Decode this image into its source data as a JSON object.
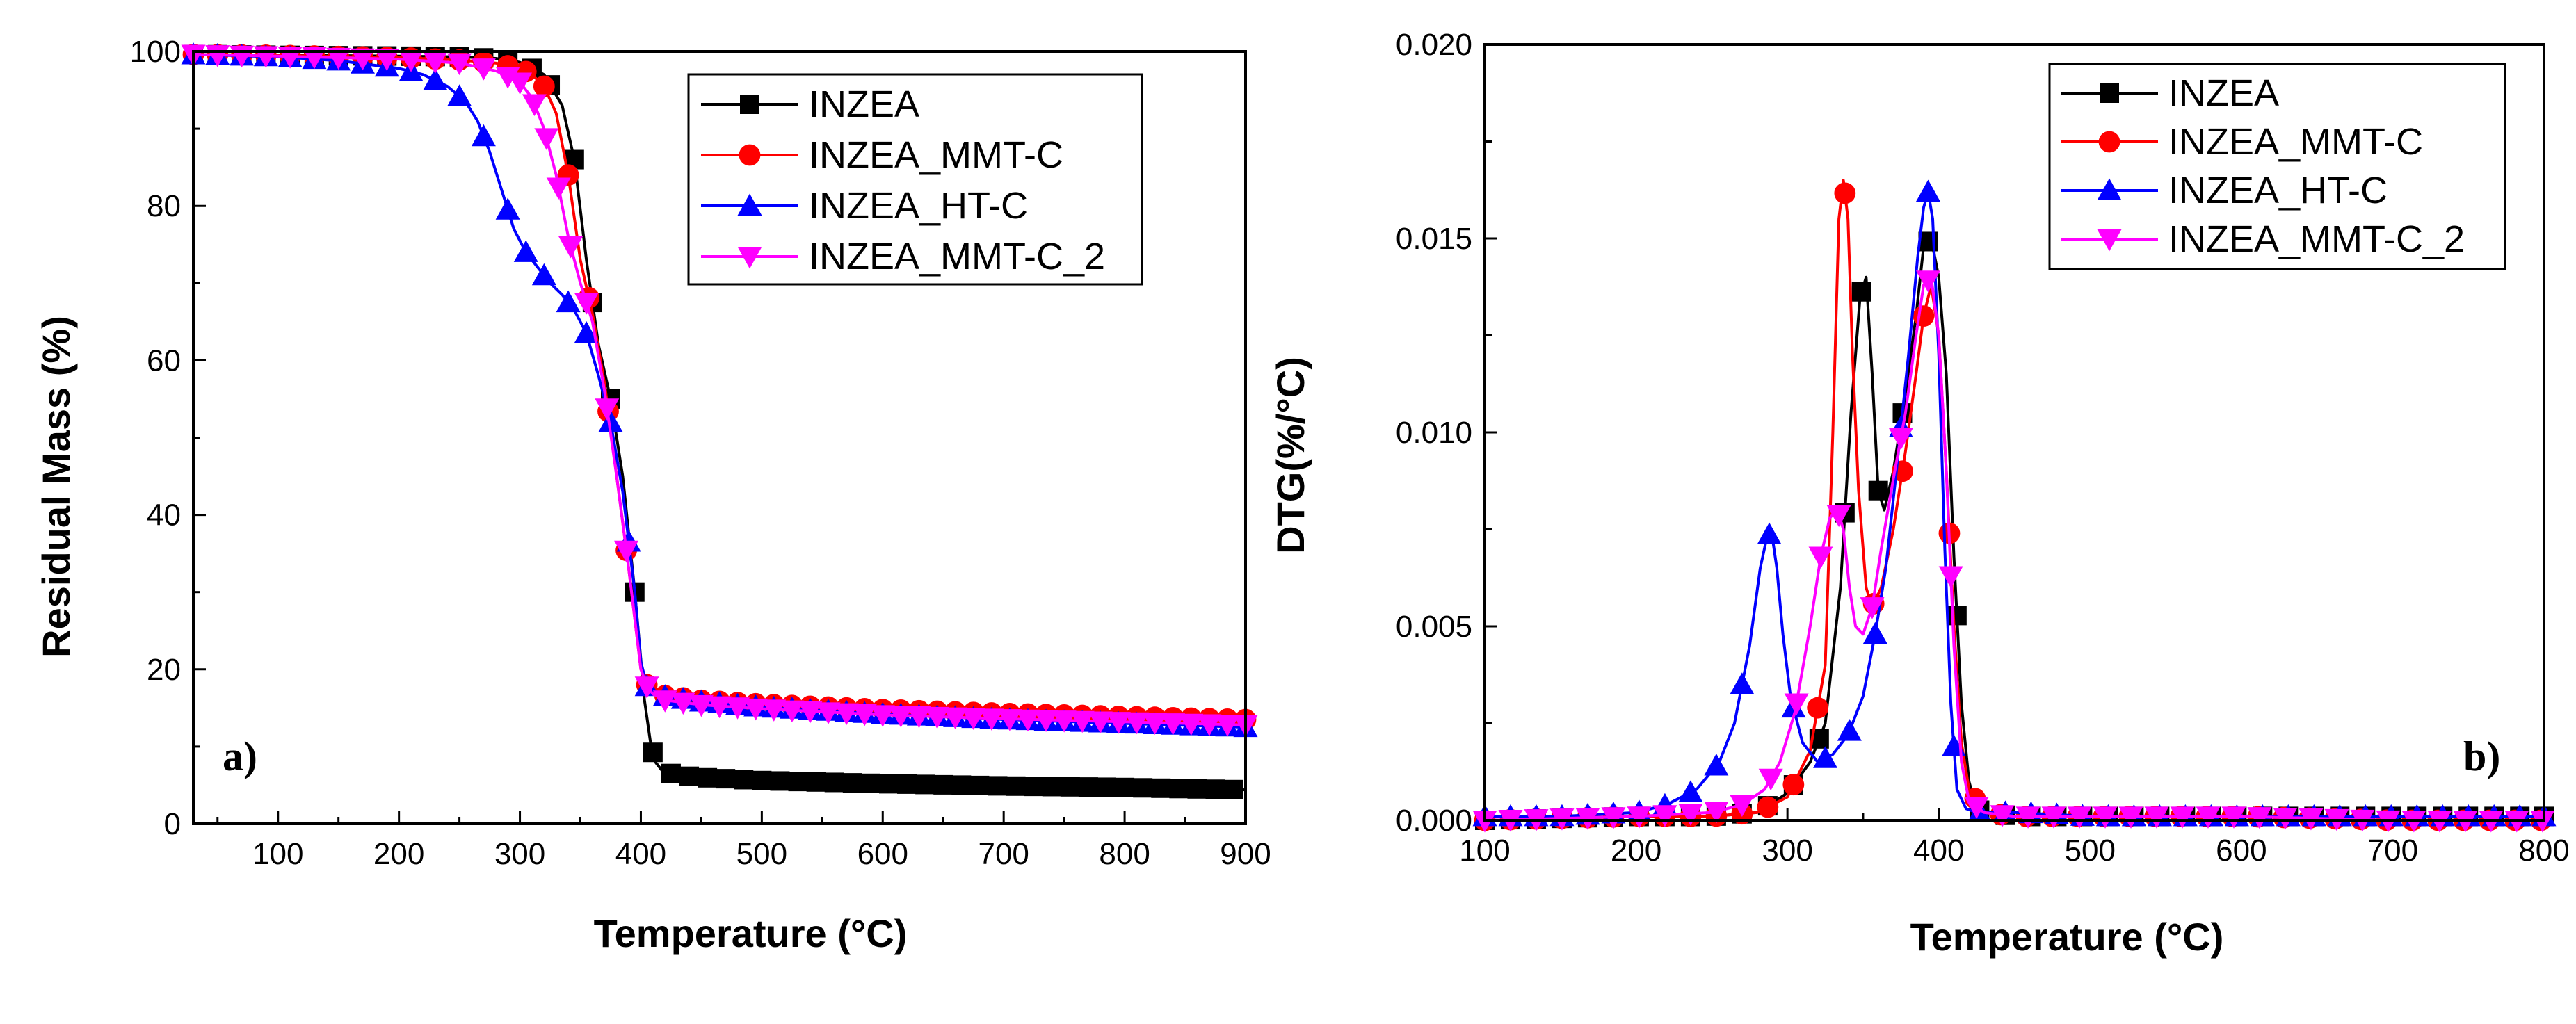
{
  "chart_data": [
    {
      "type": "line",
      "panel_label": "a)",
      "xlabel": "Temperature (°C)",
      "ylabel": "Residual Mass (%)",
      "xlim": [
        30,
        900
      ],
      "ylim": [
        0,
        100
      ],
      "xticks": [
        100,
        200,
        300,
        400,
        500,
        600,
        700,
        800,
        900
      ],
      "yticks": [
        0,
        20,
        40,
        60,
        80,
        100
      ],
      "legend_position": "top-right",
      "series": [
        {
          "name": "INZEA",
          "color": "#000000",
          "marker": "square",
          "x": [
            30,
            100,
            200,
            250,
            280,
            300,
            320,
            335,
            345,
            355,
            365,
            375,
            385,
            395,
            403,
            408,
            412,
            418,
            430,
            450,
            500,
            600,
            700,
            800,
            900
          ],
          "y": [
            99.6,
            99.5,
            99.4,
            99.3,
            99.1,
            98.6,
            97.0,
            93.0,
            86.0,
            73.0,
            62.0,
            55.0,
            45.0,
            30.0,
            16.0,
            10.5,
            8.0,
            6.8,
            6.3,
            6.0,
            5.6,
            5.2,
            4.9,
            4.7,
            4.4
          ],
          "marker_x": [
            30,
            50,
            70,
            90,
            110,
            130,
            150,
            170,
            190,
            210,
            230,
            250,
            270,
            290,
            310,
            325,
            345,
            360,
            375,
            395,
            410,
            425,
            440,
            455,
            470,
            485,
            500,
            515,
            530,
            545,
            560,
            575,
            590,
            605,
            620,
            635,
            650,
            665,
            680,
            695,
            710,
            725,
            740,
            755,
            770,
            785,
            800,
            815,
            830,
            845,
            860,
            875,
            890
          ]
        },
        {
          "name": "INZEA_MMT-C",
          "color": "#ff0000",
          "marker": "circle",
          "x": [
            30,
            100,
            200,
            250,
            280,
            300,
            310,
            320,
            330,
            340,
            350,
            360,
            370,
            380,
            390,
            400,
            405,
            410,
            420,
            450,
            500,
            600,
            700,
            800,
            900
          ],
          "y": [
            99.6,
            99.5,
            99.2,
            98.9,
            98.5,
            97.8,
            97.0,
            95.5,
            92.0,
            84.0,
            73.0,
            66.0,
            57.0,
            45.0,
            33.0,
            20.0,
            18.0,
            17.2,
            16.6,
            16.0,
            15.5,
            14.8,
            14.3,
            13.9,
            13.5
          ],
          "marker_x": [
            30,
            50,
            70,
            90,
            110,
            130,
            150,
            170,
            190,
            210,
            230,
            250,
            270,
            290,
            305,
            320,
            340,
            357,
            373,
            388,
            405,
            420,
            435,
            450,
            465,
            480,
            495,
            510,
            525,
            540,
            555,
            570,
            585,
            600,
            615,
            630,
            645,
            660,
            675,
            690,
            705,
            720,
            735,
            750,
            765,
            780,
            795,
            810,
            825,
            840,
            855,
            870,
            885,
            900
          ]
        },
        {
          "name": "INZEA_HT-C",
          "color": "#0000ff",
          "marker": "triangle-up",
          "x": [
            30,
            100,
            150,
            200,
            220,
            240,
            255,
            265,
            275,
            285,
            295,
            305,
            315,
            325,
            335,
            345,
            355,
            365,
            375,
            385,
            395,
            400,
            405,
            420,
            450,
            500,
            600,
            700,
            800,
            900
          ],
          "y": [
            99.6,
            99.3,
            98.8,
            97.8,
            97.0,
            95.5,
            93.5,
            91.0,
            87.0,
            82.0,
            77.0,
            74.0,
            72.0,
            70.0,
            68.5,
            66.5,
            63.5,
            58.0,
            52.0,
            43.0,
            30.0,
            21.0,
            17.8,
            16.5,
            15.8,
            15.1,
            14.2,
            13.5,
            13.0,
            12.5
          ],
          "marker_x": [
            30,
            50,
            70,
            90,
            110,
            130,
            150,
            170,
            190,
            210,
            230,
            250,
            270,
            290,
            305,
            320,
            340,
            355,
            375,
            390,
            405,
            420,
            435,
            450,
            465,
            480,
            495,
            510,
            525,
            540,
            555,
            570,
            585,
            600,
            615,
            630,
            645,
            660,
            675,
            690,
            705,
            720,
            735,
            750,
            765,
            780,
            795,
            810,
            825,
            840,
            855,
            870,
            885,
            900
          ]
        },
        {
          "name": "INZEA_MMT-C_2",
          "color": "#ff00ff",
          "marker": "triangle-down",
          "x": [
            30,
            100,
            200,
            250,
            280,
            300,
            310,
            320,
            330,
            340,
            350,
            360,
            370,
            380,
            390,
            400,
            405,
            410,
            420,
            450,
            500,
            600,
            700,
            800,
            900
          ],
          "y": [
            99.6,
            99.4,
            99.0,
            98.5,
            97.5,
            96.0,
            94.0,
            90.0,
            84.0,
            76.0,
            70.0,
            65.0,
            56.0,
            45.0,
            33.0,
            20.0,
            17.8,
            16.8,
            16.0,
            15.4,
            14.9,
            14.1,
            13.6,
            13.2,
            12.8
          ],
          "marker_x": [
            30,
            50,
            70,
            90,
            110,
            130,
            150,
            170,
            190,
            210,
            230,
            250,
            270,
            290,
            300,
            312,
            322,
            332,
            342,
            355,
            372,
            388,
            405,
            420,
            435,
            450,
            465,
            480,
            495,
            510,
            525,
            540,
            555,
            570,
            585,
            600,
            615,
            630,
            645,
            660,
            675,
            690,
            705,
            720,
            735,
            750,
            765,
            780,
            795,
            810,
            825,
            840,
            855,
            870,
            885,
            900
          ]
        }
      ]
    },
    {
      "type": "line",
      "panel_label": "b)",
      "xlabel": "Temperature (°C)",
      "ylabel": "DTG(%/°C)",
      "xlim": [
        100,
        800
      ],
      "ylim": [
        0,
        0.02
      ],
      "xticks": [
        100,
        200,
        300,
        400,
        500,
        600,
        700,
        800
      ],
      "yticks": [
        "0.000",
        "0.005",
        "0.010",
        "0.015",
        "0.020"
      ],
      "legend_position": "top-right",
      "series": [
        {
          "name": "INZEA",
          "color": "#000000",
          "marker": "square",
          "x": [
            100,
            200,
            250,
            280,
            300,
            315,
            325,
            335,
            342,
            348,
            352,
            356,
            360,
            364,
            370,
            378,
            385,
            390,
            395,
            400,
            405,
            410,
            415,
            420,
            425,
            430,
            450,
            500,
            600,
            700,
            800
          ],
          "y": [
            0.0,
            0.0001,
            0.0001,
            0.0002,
            0.0007,
            0.0015,
            0.0025,
            0.006,
            0.0105,
            0.0135,
            0.014,
            0.0115,
            0.0085,
            0.008,
            0.009,
            0.011,
            0.013,
            0.0148,
            0.015,
            0.014,
            0.0115,
            0.0068,
            0.003,
            0.001,
            0.0003,
            0.0002,
            0.0001,
            0.0001,
            0.0001,
            0.0001,
            0.0001
          ],
          "marker_x": [
            100,
            117,
            134,
            151,
            168,
            185,
            202,
            219,
            236,
            253,
            270,
            287,
            304,
            321,
            338,
            349,
            360,
            376,
            393,
            412,
            427,
            444,
            461,
            478,
            495,
            512,
            529,
            546,
            563,
            580,
            597,
            614,
            631,
            648,
            665,
            682,
            699,
            716,
            733,
            750,
            767,
            784,
            800
          ]
        },
        {
          "name": "INZEA_MMT-C",
          "color": "#ff0000",
          "marker": "circle",
          "x": [
            100,
            200,
            250,
            280,
            300,
            315,
            325,
            330,
            334,
            337,
            340,
            343,
            347,
            352,
            356,
            362,
            370,
            378,
            385,
            390,
            395,
            400,
            405,
            410,
            415,
            420,
            430,
            450,
            500,
            600,
            700,
            800
          ],
          "y": [
            0.0,
            0.0001,
            0.0001,
            0.0002,
            0.0006,
            0.0018,
            0.004,
            0.01,
            0.0155,
            0.0165,
            0.0155,
            0.012,
            0.0085,
            0.006,
            0.0055,
            0.006,
            0.0075,
            0.0095,
            0.0115,
            0.013,
            0.0138,
            0.0125,
            0.009,
            0.005,
            0.002,
            0.0008,
            0.0002,
            0.0001,
            0.0001,
            0.0001,
            0.0,
            0.0
          ],
          "marker_x": [
            100,
            117,
            134,
            151,
            168,
            185,
            202,
            219,
            236,
            253,
            270,
            287,
            304,
            320,
            338,
            357,
            376,
            390,
            407,
            424,
            441,
            458,
            475,
            492,
            509,
            526,
            543,
            560,
            577,
            594,
            611,
            628,
            645,
            662,
            679,
            696,
            713,
            730,
            747,
            764,
            781,
            798
          ]
        },
        {
          "name": "INZEA_HT-C",
          "color": "#0000ff",
          "marker": "triangle-up",
          "x": [
            100,
            150,
            200,
            220,
            240,
            255,
            265,
            275,
            282,
            287,
            290,
            293,
            297,
            302,
            310,
            320,
            330,
            340,
            350,
            358,
            365,
            372,
            380,
            386,
            390,
            393,
            396,
            400,
            404,
            408,
            412,
            418,
            425,
            450,
            500,
            600,
            700,
            800
          ],
          "y": [
            0.0001,
            0.0001,
            0.0002,
            0.0004,
            0.0008,
            0.0015,
            0.0025,
            0.0045,
            0.0065,
            0.0074,
            0.0073,
            0.0065,
            0.0048,
            0.0032,
            0.002,
            0.0015,
            0.0017,
            0.0022,
            0.0032,
            0.0048,
            0.0065,
            0.009,
            0.012,
            0.0145,
            0.0158,
            0.0162,
            0.0155,
            0.012,
            0.007,
            0.003,
            0.0008,
            0.0003,
            0.0002,
            0.0002,
            0.0001,
            0.0001,
            0.0001,
            0.0001
          ],
          "marker_x": [
            100,
            117,
            134,
            151,
            168,
            185,
            202,
            219,
            236,
            253,
            270,
            288,
            304,
            325,
            341,
            358,
            375,
            393,
            410,
            427,
            444,
            461,
            478,
            495,
            512,
            529,
            546,
            563,
            580,
            597,
            614,
            631,
            648,
            665,
            682,
            699,
            716,
            733,
            750,
            767,
            784,
            800
          ]
        },
        {
          "name": "INZEA_MMT-C_2",
          "color": "#ff00ff",
          "marker": "triangle-down",
          "x": [
            100,
            200,
            250,
            270,
            285,
            295,
            305,
            315,
            322,
            328,
            333,
            337,
            341,
            345,
            350,
            356,
            362,
            370,
            378,
            385,
            390,
            395,
            400,
            405,
            410,
            415,
            420,
            430,
            450,
            500,
            600,
            700,
            800
          ],
          "y": [
            0.0,
            0.0001,
            0.0002,
            0.0004,
            0.0008,
            0.0015,
            0.0028,
            0.005,
            0.0068,
            0.0078,
            0.008,
            0.0075,
            0.006,
            0.005,
            0.0048,
            0.0055,
            0.007,
            0.0088,
            0.0105,
            0.0125,
            0.0138,
            0.014,
            0.0125,
            0.009,
            0.0045,
            0.0015,
            0.0005,
            0.0002,
            0.0001,
            0.0001,
            0.0001,
            0.0,
            0.0
          ],
          "marker_x": [
            100,
            117,
            134,
            151,
            168,
            185,
            202,
            219,
            236,
            253,
            270,
            289,
            306,
            322,
            334,
            356,
            375,
            393,
            408,
            425,
            442,
            459,
            476,
            493,
            510,
            527,
            544,
            561,
            578,
            595,
            612,
            629,
            646,
            663,
            680,
            697,
            714,
            731,
            748,
            765,
            782,
            799
          ]
        }
      ]
    }
  ]
}
